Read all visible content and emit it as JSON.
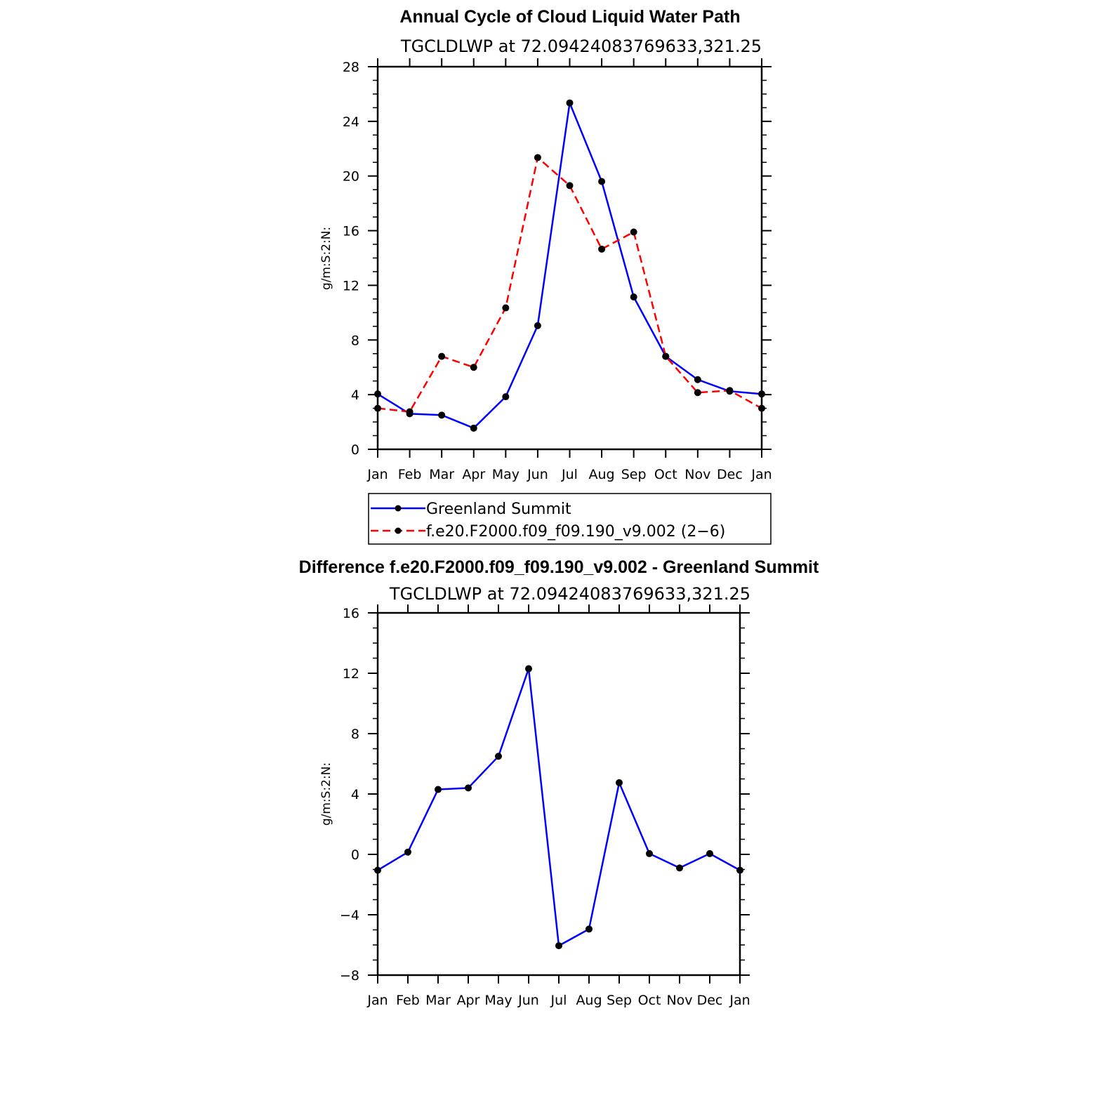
{
  "chart_data": [
    {
      "type": "line",
      "title": "Annual Cycle of Cloud Liquid Water Path",
      "subtitle": "TGCLDLWP  at  72.09424083769633,321.25",
      "ylabel": "g/m:S:2:N:",
      "xlabel": "",
      "ylim": [
        0,
        28
      ],
      "yticks": [
        0,
        4,
        8,
        12,
        16,
        20,
        24,
        28
      ],
      "categories": [
        "Jan",
        "Feb",
        "Mar",
        "Apr",
        "May",
        "Jun",
        "Jul",
        "Aug",
        "Sep",
        "Oct",
        "Nov",
        "Dec",
        "Jan"
      ],
      "series": [
        {
          "name": "Greenland Summit",
          "color": "#0000ff",
          "dash": "solid",
          "values": [
            4.05,
            2.6,
            2.5,
            1.55,
            3.85,
            9.05,
            25.35,
            19.6,
            11.15,
            6.8,
            5.1,
            4.25,
            4.05
          ]
        },
        {
          "name": "f.e20.F2000.f09_f09.190_v9.002 (2−6)",
          "color": "#ff0000",
          "dash": "dashed",
          "values": [
            3.0,
            2.75,
            6.8,
            6.0,
            10.35,
            21.35,
            19.3,
            14.65,
            15.9,
            6.8,
            4.15,
            4.3,
            3.0
          ]
        }
      ],
      "legend": "below"
    },
    {
      "type": "line",
      "title": "Difference f.e20.F2000.f09_f09.190_v9.002 - Greenland Summit",
      "subtitle": "TGCLDLWP  at  72.09424083769633,321.25",
      "ylabel": "g/m:S:2:N:",
      "xlabel": "",
      "ylim": [
        -8,
        16
      ],
      "yticks": [
        -8,
        -4,
        0,
        4,
        8,
        12,
        16
      ],
      "categories": [
        "Jan",
        "Feb",
        "Mar",
        "Apr",
        "May",
        "Jun",
        "Jul",
        "Aug",
        "Sep",
        "Oct",
        "Nov",
        "Dec",
        "Jan"
      ],
      "series": [
        {
          "name": "Difference",
          "color": "#0000ff",
          "dash": "solid",
          "values": [
            -1.05,
            0.15,
            4.3,
            4.4,
            6.5,
            12.3,
            -6.05,
            -4.95,
            4.75,
            0.05,
            -0.9,
            0.05,
            -1.05
          ]
        }
      ]
    }
  ]
}
